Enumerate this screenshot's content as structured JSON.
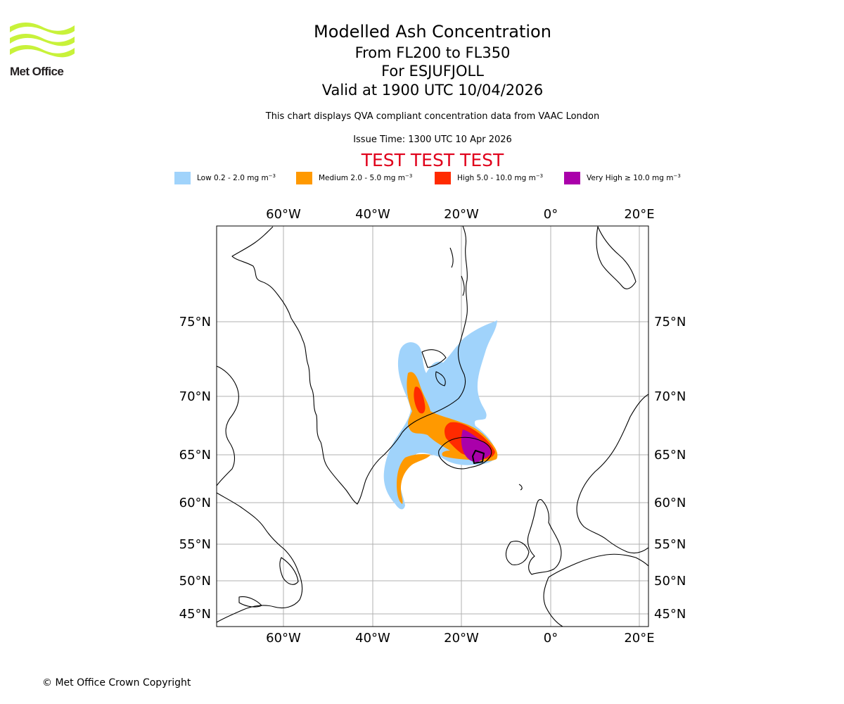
{
  "logo": {
    "text": "Met Office",
    "color": "#c8f23a"
  },
  "header": {
    "title": "Modelled Ash Concentration",
    "flight_levels": "From FL200 to FL350",
    "volcano_line": "For ESJUFJOLL",
    "valid_line": "Valid at 1900 UTC 10/04/2026",
    "compliance_note": "This chart displays QVA compliant concentration data from VAAC London",
    "issue_time": "Issue Time: 1300 UTC 10 Apr 2026",
    "test_banner": "TEST TEST TEST"
  },
  "legend": [
    {
      "label": "Low 0.2 - 2.0 mg m",
      "exponent": "−3",
      "color": "#a0d3fb"
    },
    {
      "label": "Medium 2.0 - 5.0 mg m",
      "exponent": "−3",
      "color": "#ff9900"
    },
    {
      "label": "High 5.0 - 10.0 mg m",
      "exponent": "−3",
      "color": "#ff2a00"
    },
    {
      "label": "Very High  ≥  10.0 mg m",
      "exponent": "−3",
      "color": "#aa00aa"
    }
  ],
  "map": {
    "longitude_ticks": [
      "60°W",
      "40°W",
      "20°W",
      "0°",
      "20°E"
    ],
    "latitude_ticks": [
      "75°N",
      "70°N",
      "65°N",
      "60°N",
      "55°N",
      "50°N",
      "45°N"
    ],
    "gridline_color": "#b0b0b0",
    "coastline_color": "#000000",
    "volcano": "ESJUFJOLL"
  },
  "footer": {
    "copyright": "© Met Office Crown Copyright"
  }
}
